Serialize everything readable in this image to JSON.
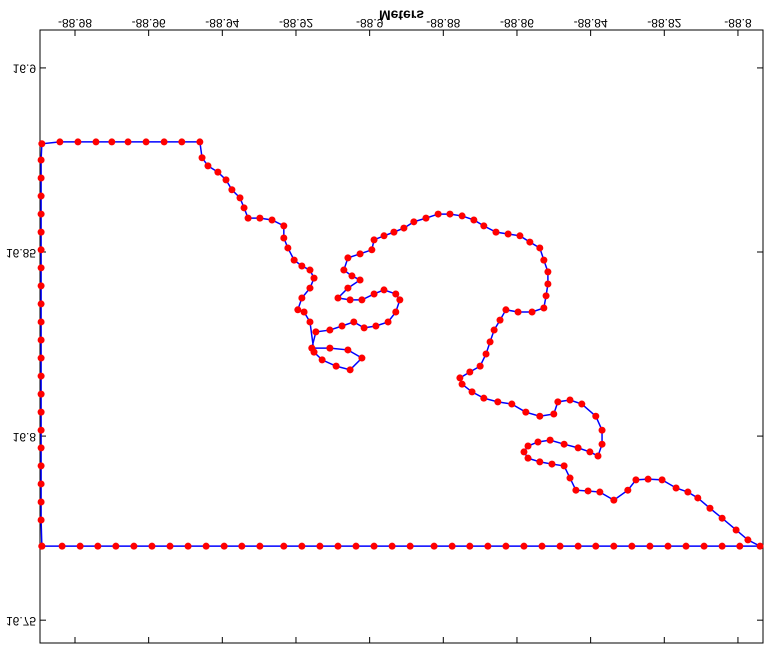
{
  "chart_data": {
    "type": "line",
    "title": "Meters",
    "xlim": [
      -88.9895,
      -88.7932
    ],
    "ylim": [
      16.7438,
      16.9103
    ],
    "xticks": [
      -88.98,
      -88.96,
      -88.94,
      -88.92,
      -88.9,
      -88.88,
      -88.86,
      -88.84,
      -88.82,
      -88.8
    ],
    "yticks": [
      16.75,
      16.8,
      16.85,
      16.9
    ],
    "line_color": "#0000ff",
    "marker_color": "#ff0000",
    "flipped_text": true,
    "x": [
      -88.989,
      -88.9835,
      -88.9786,
      -88.9738,
      -88.9689,
      -88.964,
      -88.9591,
      -88.9542,
      -88.9493,
      -88.9444,
      -88.9395,
      -88.9347,
      -88.9298,
      -88.9233,
      -88.9184,
      -88.9135,
      -88.9086,
      -88.9037,
      -88.8988,
      -88.8939,
      -88.889,
      -88.8825,
      -88.8776,
      -88.8728,
      -88.8679,
      -88.863,
      -88.8581,
      -88.8532,
      -88.8483,
      -88.8434,
      -88.8386,
      -88.8337,
      -88.8288,
      -88.8239,
      -88.819,
      -88.8141,
      -88.8092,
      -88.8043,
      -88.7995,
      -88.794,
      -88.7973,
      -88.8005,
      -88.8043,
      -88.8076,
      -88.8109,
      -88.8136,
      -88.8168,
      -88.8206,
      -88.8244,
      -88.8277,
      -88.8299,
      -88.8337,
      -88.8375,
      -88.8407,
      -88.844,
      -88.8456,
      -88.8472,
      -88.8505,
      -88.8538,
      -88.857,
      -88.8581,
      -88.857,
      -88.8543,
      -88.851,
      -88.8472,
      -88.8434,
      -88.8402,
      -88.838,
      -88.8369,
      -88.8369,
      -88.8386,
      -88.8424,
      -88.8456,
      -88.8489,
      -88.85,
      -88.8538,
      -88.8576,
      -88.8614,
      -88.8652,
      -88.869,
      -88.8722,
      -88.8749,
      -88.8755,
      -88.8728,
      -88.87,
      -88.8684,
      -88.8673,
      -88.8662,
      -88.8646,
      -88.863,
      -88.8597,
      -88.8559,
      -88.8527,
      -88.8521,
      -88.8516,
      -88.8516,
      -88.8527,
      -88.8538,
      -88.8565,
      -88.8592,
      -88.8624,
      -88.8657,
      -88.869,
      -88.8717,
      -88.8749,
      -88.8782,
      -88.8814,
      -88.8847,
      -88.888,
      -88.8907,
      -88.8934,
      -88.8961,
      -88.8988,
      -88.8994,
      -88.9026,
      -88.9059,
      -88.907,
      -88.9048,
      -88.9026,
      -88.9059,
      -88.9086,
      -88.9053,
      -88.9021,
      -88.8988,
      -88.8961,
      -88.8929,
      -88.8918,
      -88.8929,
      -88.895,
      -88.8983,
      -88.9015,
      -88.9043,
      -88.9075,
      -88.9108,
      -88.9146,
      -88.9157,
      -88.9108,
      -88.9059,
      -88.9021,
      -88.9053,
      -88.9091,
      -88.9129,
      -88.9151,
      -88.9162,
      -88.9178,
      -88.9195,
      -88.9184,
      -88.9162,
      -88.9151,
      -88.9162,
      -88.9184,
      -88.9205,
      -88.9222,
      -88.9233,
      -88.9233,
      -88.9265,
      -88.9298,
      -88.933,
      -88.9341,
      -88.9352,
      -88.9374,
      -88.939,
      -88.9412,
      -88.9439,
      -88.9455,
      -88.9461,
      -88.951,
      -88.9558,
      -88.9607,
      -88.9656,
      -88.97,
      -88.9743,
      -88.9792,
      -88.9841,
      -88.989,
      -88.9892,
      -88.9892,
      -88.9892,
      -88.9892,
      -88.9892,
      -88.9892,
      -88.9892,
      -88.9892,
      -88.9892,
      -88.9892,
      -88.9892,
      -88.9892,
      -88.9892,
      -88.9892,
      -88.9892,
      -88.9892,
      -88.9892,
      -88.9892,
      -88.9892,
      -88.9892,
      -88.9892,
      -88.989
    ],
    "values": [
      16.7701,
      16.7701,
      16.7701,
      16.7701,
      16.7701,
      16.7701,
      16.7701,
      16.7701,
      16.7701,
      16.7701,
      16.7701,
      16.7701,
      16.7701,
      16.7701,
      16.7701,
      16.7701,
      16.7701,
      16.7701,
      16.7701,
      16.7701,
      16.7701,
      16.7701,
      16.7701,
      16.7701,
      16.7701,
      16.7701,
      16.7701,
      16.7701,
      16.7701,
      16.7701,
      16.7701,
      16.7701,
      16.7701,
      16.7701,
      16.7701,
      16.7701,
      16.7701,
      16.7701,
      16.7701,
      16.7701,
      16.7718,
      16.7745,
      16.7777,
      16.7804,
      16.7832,
      16.7848,
      16.7859,
      16.7881,
      16.7883,
      16.7881,
      16.7853,
      16.7826,
      16.7848,
      16.7851,
      16.7853,
      16.7886,
      16.7919,
      16.7924,
      16.793,
      16.794,
      16.7957,
      16.7973,
      16.7984,
      16.7989,
      16.7978,
      16.7968,
      16.7957,
      16.7946,
      16.7978,
      16.8016,
      16.8054,
      16.8087,
      16.8098,
      16.8093,
      16.806,
      16.8054,
      16.8065,
      16.8087,
      16.8093,
      16.8103,
      16.812,
      16.8141,
      16.8158,
      16.8174,
      16.819,
      16.8223,
      16.8256,
      16.8288,
      16.8315,
      16.8343,
      16.8337,
      16.8337,
      16.8348,
      16.8381,
      16.8413,
      16.8446,
      16.8478,
      16.8511,
      16.8527,
      16.8544,
      16.8549,
      16.8554,
      16.8571,
      16.8587,
      16.8598,
      16.8603,
      16.8603,
      16.8592,
      16.8582,
      16.8565,
      16.8554,
      16.8544,
      16.8533,
      16.8506,
      16.8495,
      16.8484,
      16.8451,
      16.8435,
      16.8424,
      16.8402,
      16.8375,
      16.837,
      16.837,
      16.8386,
      16.8397,
      16.8386,
      16.837,
      16.8337,
      16.831,
      16.8299,
      16.8294,
      16.831,
      16.8299,
      16.8288,
      16.8283,
      16.8239,
      16.8239,
      16.8234,
      16.8212,
      16.818,
      16.819,
      16.8207,
      16.8228,
      16.831,
      16.8337,
      16.8343,
      16.8375,
      16.8402,
      16.8429,
      16.8451,
      16.8462,
      16.8478,
      16.8511,
      16.8538,
      16.8571,
      16.8587,
      16.8592,
      16.8592,
      16.862,
      16.8647,
      16.8669,
      16.8696,
      16.8717,
      16.8734,
      16.8756,
      16.8799,
      16.8799,
      16.8799,
      16.8799,
      16.8799,
      16.8799,
      16.8799,
      16.8799,
      16.8799,
      16.8794,
      16.875,
      16.8701,
      16.8652,
      16.8603,
      16.8554,
      16.8506,
      16.8457,
      16.8408,
      16.8359,
      16.831,
      16.8261,
      16.8212,
      16.8163,
      16.8114,
      16.8065,
      16.8016,
      16.7968,
      16.7919,
      16.787,
      16.7821,
      16.7772,
      16.7701
    ]
  }
}
